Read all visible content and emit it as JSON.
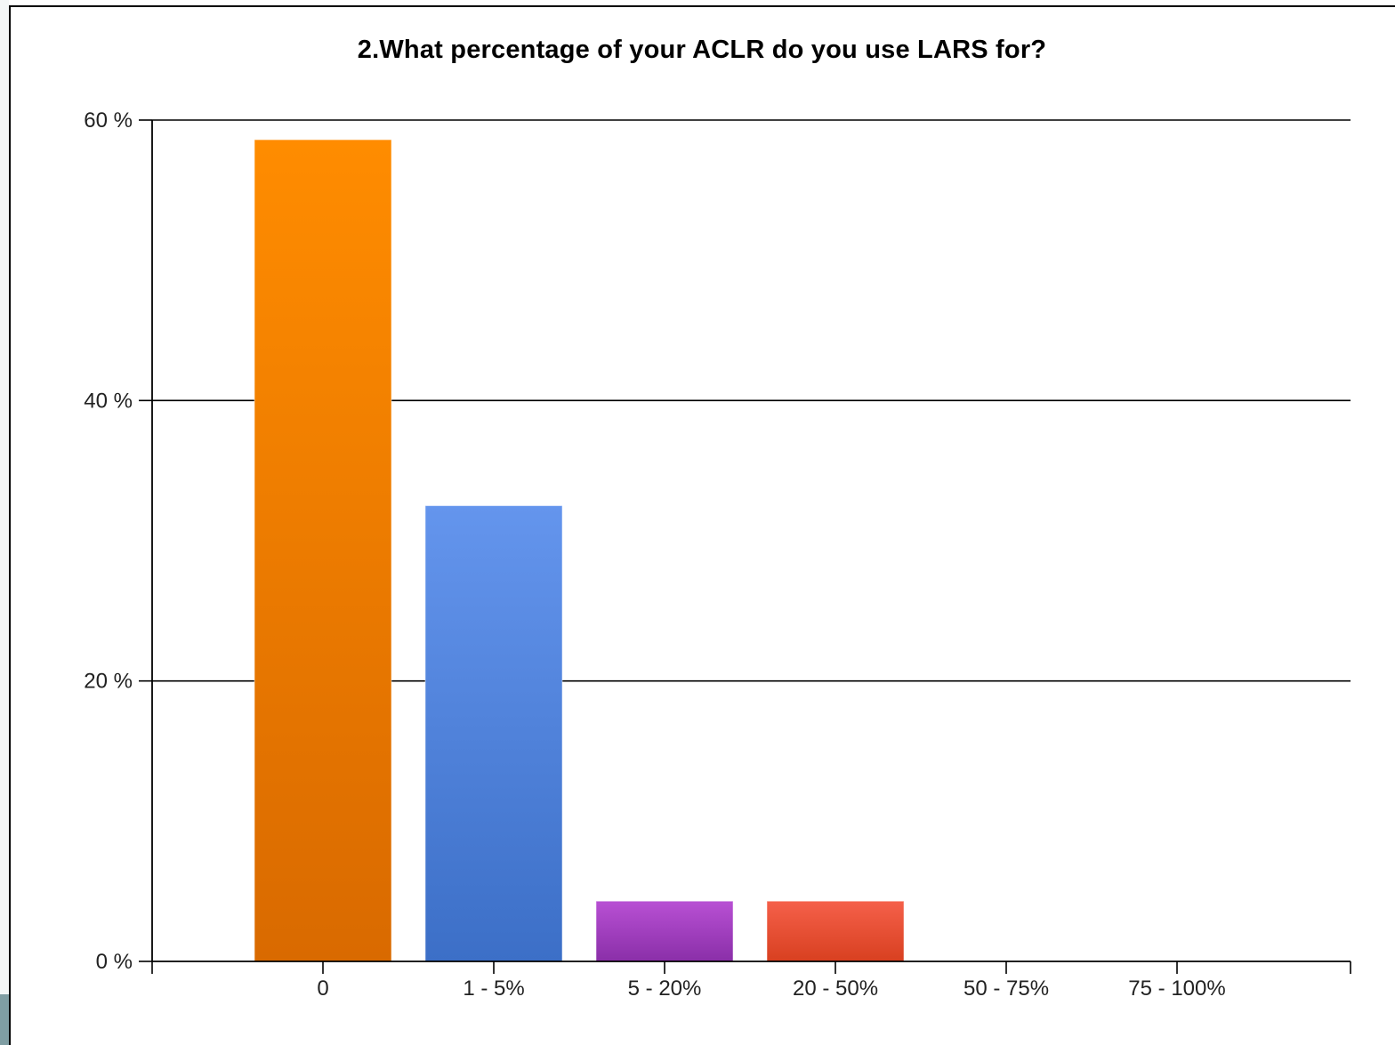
{
  "chart_data": {
    "type": "bar",
    "title": "2.What percentage of your ACLR do you use LARS for?",
    "xlabel": "",
    "ylabel": "",
    "categories": [
      "0",
      "1 - 5%",
      "5 - 20%",
      "20 - 50%",
      "50 - 75%",
      "75 - 100%"
    ],
    "values": [
      58.6,
      32.5,
      4.3,
      4.3,
      0,
      0
    ],
    "ylim": [
      0,
      60
    ],
    "yticks": [
      {
        "value": 0,
        "label": "0 %"
      },
      {
        "value": 20,
        "label": "20 %"
      },
      {
        "value": 40,
        "label": "40 %"
      },
      {
        "value": 60,
        "label": "60 %"
      }
    ],
    "grid": true,
    "legend": "none",
    "colors": [
      [
        "#ff8c00",
        "#d96a00"
      ],
      [
        "#6495ed",
        "#3c6fc7"
      ],
      [
        "#b850d4",
        "#8a2fa8"
      ],
      [
        "#f5604a",
        "#d84020"
      ],
      [
        "#999999",
        "#777777"
      ],
      [
        "#999999",
        "#777777"
      ]
    ]
  }
}
